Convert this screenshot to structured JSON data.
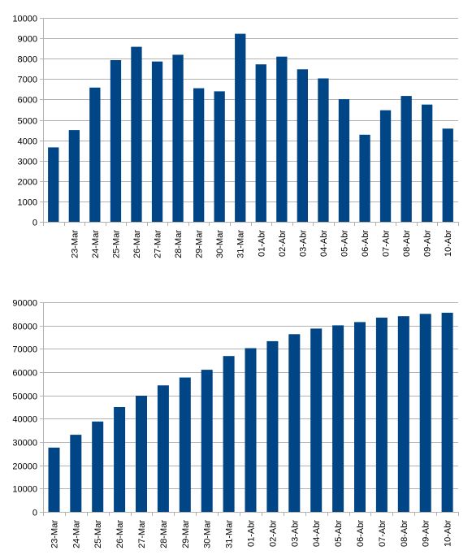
{
  "chart_data": [
    {
      "type": "bar",
      "categories": [
        "",
        "23-Mar",
        "24-Mar",
        "25-Mar",
        "26-Mar",
        "27-Mar",
        "28-Mar",
        "29-Mar",
        "30-Mar",
        "31-Mar",
        "01-Abr",
        "02-Abr",
        "03-Abr",
        "04-Abr",
        "05-Abr",
        "06-Abr",
        "07-Abr",
        "08-Abr",
        "09-Abr",
        "10-Abr"
      ],
      "values": [
        3650,
        4500,
        6580,
        7930,
        8580,
        7860,
        8190,
        6550,
        6400,
        9220,
        7720,
        8100,
        7480,
        7030,
        6010,
        4270,
        5470,
        6170,
        5750,
        4570
      ],
      "ylim": [
        0,
        10000
      ],
      "yticks": [
        0,
        1000,
        2000,
        3000,
        4000,
        5000,
        6000,
        7000,
        8000,
        9000,
        10000
      ],
      "grid": true,
      "color": "#004586"
    },
    {
      "type": "bar",
      "categories": [
        "23-Mar",
        "24-Mar",
        "25-Mar",
        "26-Mar",
        "27-Mar",
        "28-Mar",
        "29-Mar",
        "30-Mar",
        "31-Mar",
        "01-Abr",
        "02-Abr",
        "03-Abr",
        "04-Abr",
        "05-Abr",
        "06-Abr",
        "07-Abr",
        "08-Abr",
        "09-Abr",
        "10-Abr"
      ],
      "values": [
        27600,
        33100,
        38800,
        45000,
        49900,
        54300,
        57700,
        61000,
        66900,
        70300,
        73300,
        76300,
        78700,
        80100,
        81500,
        83400,
        84000,
        85000,
        85500
      ],
      "ylim": [
        0,
        90000
      ],
      "yticks": [
        0,
        10000,
        20000,
        30000,
        40000,
        50000,
        60000,
        70000,
        80000,
        90000
      ],
      "grid": true,
      "color": "#004586"
    }
  ]
}
